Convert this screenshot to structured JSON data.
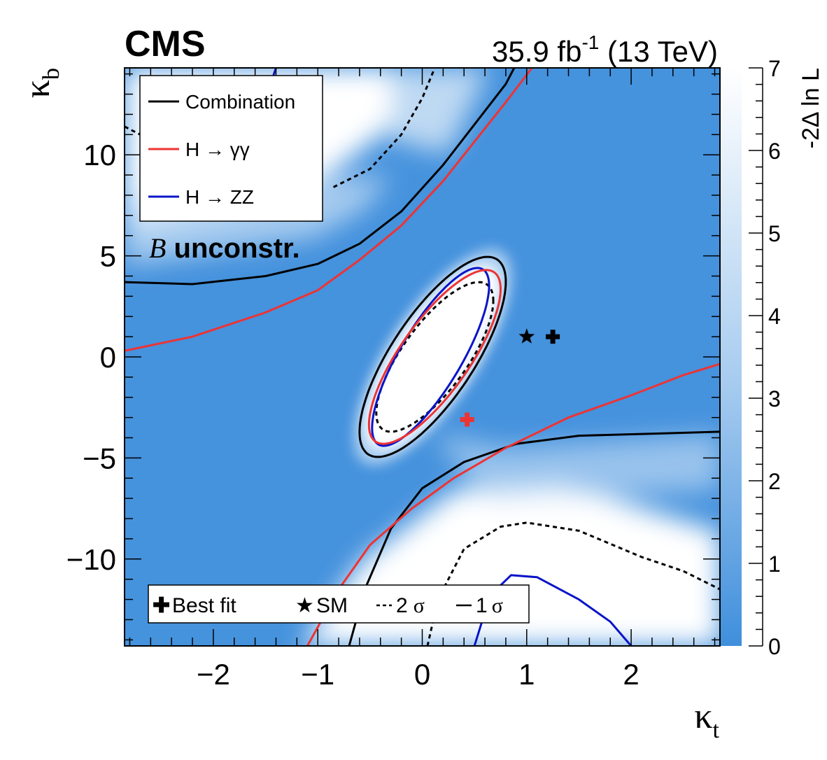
{
  "header": {
    "experiment": "CMS",
    "lumi_value": "35.9 fb",
    "lumi_exp": "-1",
    "lumi_energy": " (13 TeV)"
  },
  "chart_data": {
    "type": "heatmap",
    "title": "",
    "xlabel": "κ",
    "xlabel_sub": "t",
    "ylabel": "κ",
    "ylabel_sub": "b",
    "xlim": [
      -2.85,
      2.85
    ],
    "ylim": [
      -14.3,
      14.3
    ],
    "x_ticks": [
      -2,
      -1,
      0,
      1,
      2
    ],
    "x_tick_labels": [
      "−2",
      "−1",
      "0",
      "1",
      "2"
    ],
    "y_ticks": [
      -10,
      -5,
      0,
      5,
      10
    ],
    "y_tick_labels": [
      "−10",
      "−5",
      "0",
      "5",
      "10"
    ],
    "colorbar": {
      "label": "-2Δ ln L",
      "range": [
        0,
        7
      ],
      "ticks": [
        0,
        1,
        2,
        3,
        4,
        5,
        6,
        7
      ],
      "tick_labels": [
        "0",
        "1",
        "2",
        "3",
        "4",
        "5",
        "6",
        "7"
      ],
      "color_low": "#3f8fdc",
      "color_high": "#ffffff"
    },
    "annotation": {
      "italic": "B",
      "bold": " unconstr."
    },
    "legend_channels": [
      {
        "name": "Combination",
        "color": "#000000"
      },
      {
        "name": "H → γγ",
        "color": "#ee3333"
      },
      {
        "name": "H → ZZ",
        "color": "#0a14c8"
      }
    ],
    "legend_symbols": {
      "best_fit": "Best fit",
      "sm": "SM",
      "two_sigma_num": "2",
      "one_sigma_num": "1",
      "sigma": "σ",
      "best_fit_glyph": "✚",
      "sm_glyph": "★"
    },
    "markers": {
      "combination_best_fit": {
        "x": 1.25,
        "y": 1.0,
        "color": "#000000"
      },
      "hgg_best_fit": {
        "x": 0.43,
        "y": -3.1,
        "color": "#ee3333"
      },
      "sm": {
        "x": 1.0,
        "y": 1.0,
        "color": "#000000"
      }
    },
    "contours": {
      "comb_1sigma_ellipse": {
        "cx": 0.1,
        "cy": 0.0,
        "rx": 0.7,
        "ry": 4.95,
        "rho": 0.75
      },
      "comb_2sigma_ellipse": {
        "cx": 0.12,
        "cy": 0.0,
        "rx": 0.56,
        "ry": 3.7,
        "rho": 0.75
      },
      "hgg_1sigma_ellipse": {
        "cx": 0.12,
        "cy": 0.0,
        "rx": 0.63,
        "ry": 4.3,
        "rho": 0.78
      },
      "hzz_1sigma_ellipse": {
        "cx": 0.08,
        "cy": 0.0,
        "rx": 0.56,
        "ry": 4.4,
        "rho": 0.8
      },
      "comb_1sigma_upper": [
        [
          -2.85,
          3.7
        ],
        [
          -2.2,
          3.6
        ],
        [
          -1.5,
          4.0
        ],
        [
          -1.0,
          4.6
        ],
        [
          -0.6,
          5.6
        ],
        [
          -0.2,
          7.2
        ],
        [
          0.2,
          9.5
        ],
        [
          0.5,
          11.5
        ],
        [
          0.8,
          13.5
        ],
        [
          0.88,
          14.3
        ]
      ],
      "comb_1sigma_lower": [
        [
          -0.7,
          -14.3
        ],
        [
          -0.55,
          -11.5
        ],
        [
          -0.3,
          -8.5
        ],
        [
          0.0,
          -6.5
        ],
        [
          0.4,
          -5.2
        ],
        [
          0.9,
          -4.3
        ],
        [
          1.5,
          -3.9
        ],
        [
          2.2,
          -3.8
        ],
        [
          2.85,
          -3.7
        ]
      ],
      "hgg_1sigma_upper": [
        [
          -2.85,
          0.3
        ],
        [
          -2.2,
          1.0
        ],
        [
          -1.5,
          2.2
        ],
        [
          -1.0,
          3.3
        ],
        [
          -0.6,
          4.8
        ],
        [
          -0.2,
          6.5
        ],
        [
          0.2,
          8.7
        ],
        [
          0.6,
          11.3
        ],
        [
          0.8,
          12.6
        ],
        [
          1.05,
          14.3
        ]
      ],
      "hgg_1sigma_lower": [
        [
          -1.1,
          -14.3
        ],
        [
          -0.8,
          -11.5
        ],
        [
          -0.5,
          -9.3
        ],
        [
          -0.1,
          -7.5
        ],
        [
          0.3,
          -6.0
        ],
        [
          0.8,
          -4.5
        ],
        [
          1.4,
          -3.0
        ],
        [
          2.0,
          -1.9
        ],
        [
          2.5,
          -0.9
        ],
        [
          2.85,
          -0.35
        ]
      ],
      "comb_2sigma_upper_left": [
        [
          -2.85,
          11.4
        ],
        [
          -2.7,
          11.0
        ]
      ],
      "comb_2sigma_upper": [
        [
          -0.85,
          8.4
        ],
        [
          -0.5,
          9.3
        ],
        [
          -0.2,
          11.0
        ],
        [
          0.0,
          12.8
        ],
        [
          0.12,
          14.3
        ]
      ],
      "comb_2sigma_lower": [
        [
          0.05,
          -14.3
        ],
        [
          0.15,
          -12.0
        ],
        [
          0.4,
          -9.5
        ],
        [
          0.75,
          -8.4
        ],
        [
          1.0,
          -8.2
        ],
        [
          1.5,
          -8.6
        ],
        [
          2.1,
          -9.9
        ],
        [
          2.5,
          -10.6
        ],
        [
          2.85,
          -11.5
        ]
      ],
      "hzz_1sigma_upper_left": [
        [
          -1.4,
          14.3
        ],
        [
          -1.5,
          12.8
        ],
        [
          -1.75,
          11.6
        ],
        [
          -2.0,
          11.0
        ]
      ],
      "hzz_1sigma_lower": [
        [
          0.5,
          -14.3
        ],
        [
          0.65,
          -11.8
        ],
        [
          0.85,
          -10.8
        ],
        [
          1.1,
          -10.9
        ],
        [
          1.5,
          -12.0
        ],
        [
          1.8,
          -13.1
        ],
        [
          2.0,
          -14.3
        ]
      ]
    }
  }
}
